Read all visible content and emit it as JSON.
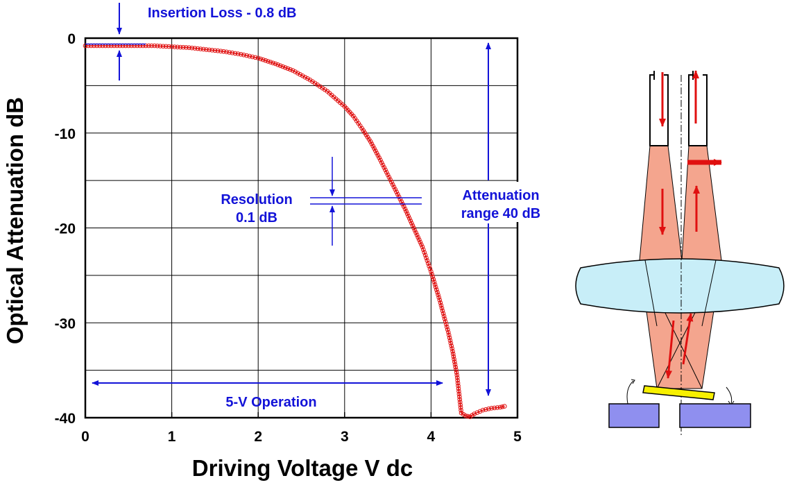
{
  "chart_data": {
    "type": "scatter",
    "xlabel": "Driving Voltage  V dc",
    "ylabel": "Optical Attenuation  dB",
    "xlim": [
      0,
      5
    ],
    "ylim": [
      -40,
      0
    ],
    "xticks": [
      "0",
      "1",
      "2",
      "3",
      "4",
      "5"
    ],
    "yticks": [
      "0",
      "-10",
      "-20",
      "-30",
      "-40"
    ],
    "grid": true,
    "series": [
      {
        "color": "#e01010",
        "marker": "open-circle",
        "x": [
          0,
          0.2,
          0.4,
          0.6,
          0.8,
          1.0,
          1.2,
          1.4,
          1.6,
          1.8,
          2.0,
          2.2,
          2.4,
          2.6,
          2.8,
          3.0,
          3.1,
          3.2,
          3.3,
          3.4,
          3.5,
          3.6,
          3.7,
          3.8,
          3.9,
          4.0,
          4.1,
          4.2,
          4.25,
          4.3,
          4.35,
          4.4,
          4.45,
          4.5,
          4.6,
          4.7,
          4.8,
          4.85
        ],
        "y": [
          -0.8,
          -0.8,
          -0.8,
          -0.8,
          -0.8,
          -0.9,
          -1.0,
          -1.2,
          -1.4,
          -1.7,
          -2.1,
          -2.7,
          -3.4,
          -4.4,
          -5.6,
          -7.2,
          -8.2,
          -9.5,
          -10.9,
          -12.6,
          -14.4,
          -16.2,
          -18.0,
          -20.0,
          -22.0,
          -24.6,
          -27.6,
          -31.0,
          -33.0,
          -35.5,
          -39.5,
          -39.8,
          -39.9,
          -39.6,
          -39.2,
          -39.0,
          -38.9,
          -38.8
        ]
      }
    ],
    "annotations": {
      "insertion_loss": "Insertion Loss - 0.8 dB",
      "resolution_line1": "Resolution",
      "resolution_line2": "0.1 dB",
      "atten_line1": "Attenuation",
      "atten_line2": "range 40 dB",
      "operation": "5-V Operation"
    }
  },
  "colors": {
    "data": "#e01010",
    "annotation": "#1212d8",
    "beam": "#f4a58e",
    "lens": "#c8eef8",
    "mirror": "#f7f000",
    "block": "#8f8fef"
  }
}
